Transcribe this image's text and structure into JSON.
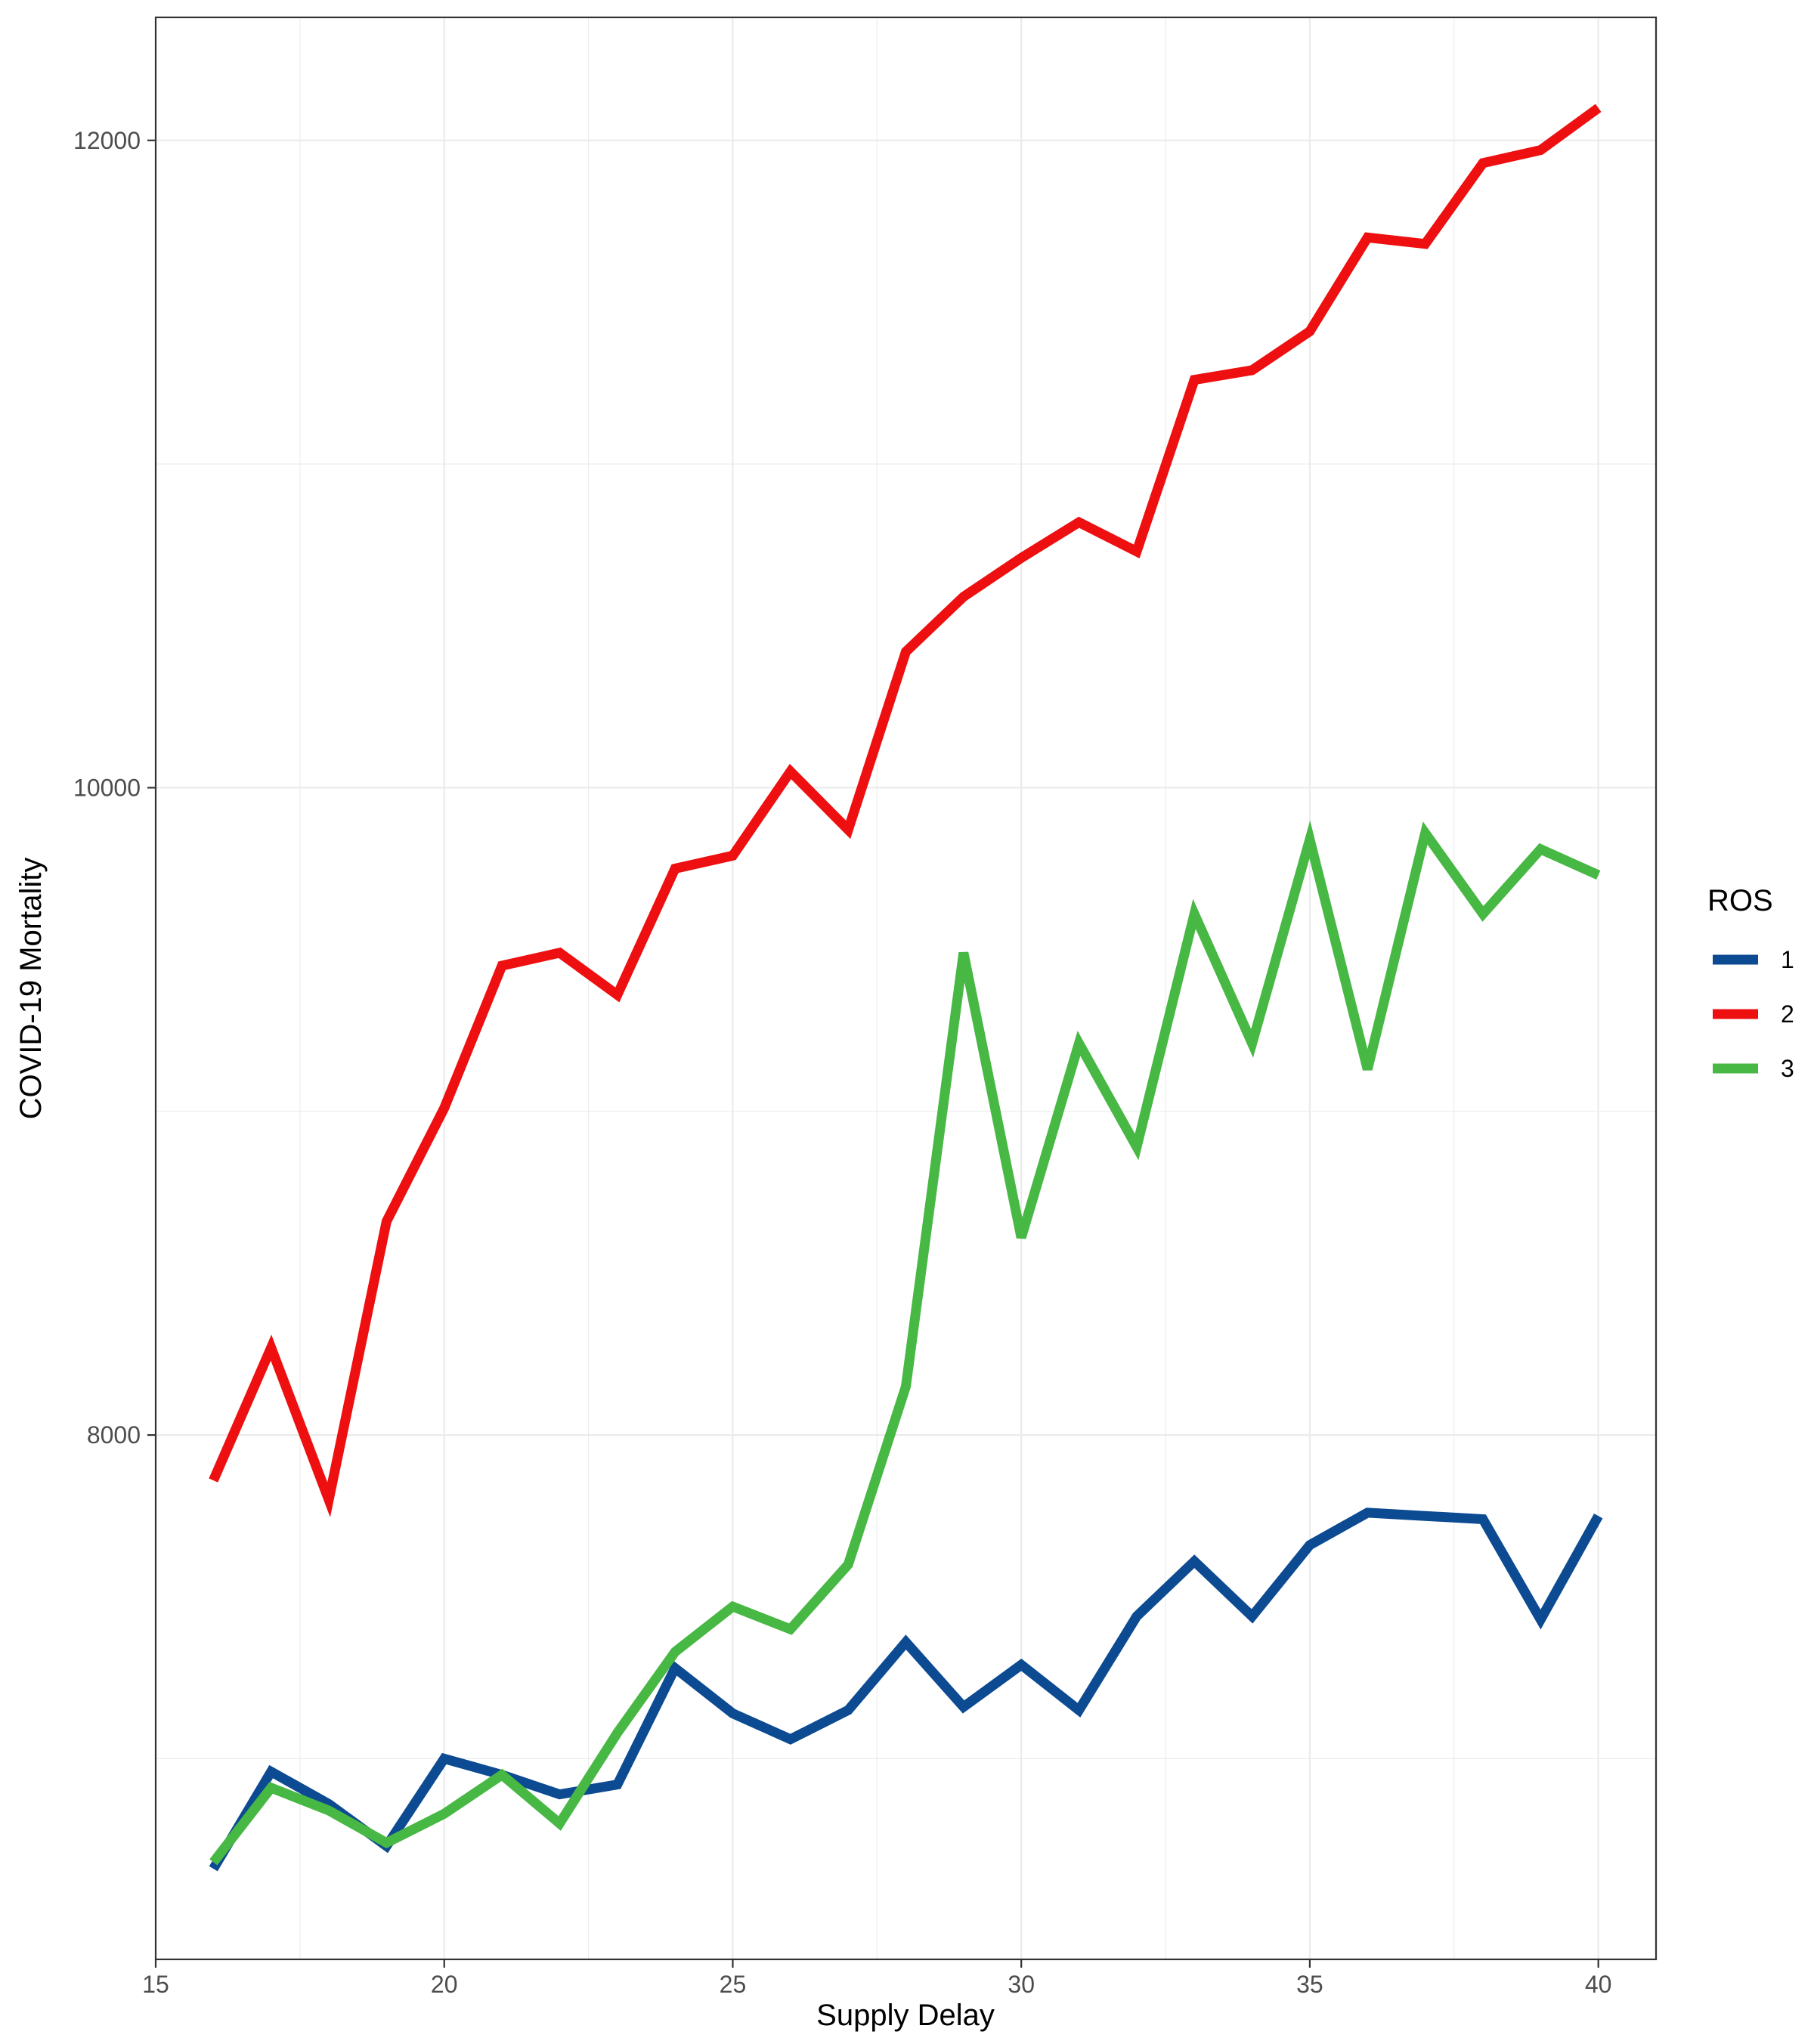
{
  "chart_data": {
    "type": "line",
    "title": "",
    "xlabel": "Supply Delay",
    "ylabel": "COVID-19 Mortality",
    "x": [
      16,
      17,
      18,
      19,
      20,
      21,
      22,
      23,
      24,
      25,
      26,
      27,
      28,
      29,
      30,
      31,
      32,
      33,
      34,
      35,
      36,
      37,
      38,
      39,
      40
    ],
    "xlim": [
      15,
      41
    ],
    "ylim": [
      6380,
      12380
    ],
    "x_ticks": [
      15,
      20,
      25,
      30,
      35,
      40
    ],
    "y_ticks": [
      8000,
      10000,
      12000
    ],
    "grid": true,
    "legend": {
      "title": "ROS",
      "position": "right"
    },
    "series": [
      {
        "name": "1",
        "color": "#0c4a92",
        "values": [
          6660,
          6960,
          6860,
          6730,
          7000,
          6950,
          6890,
          6920,
          7280,
          7140,
          7060,
          7150,
          7360,
          7160,
          7290,
          7150,
          7440,
          7610,
          7440,
          7660,
          7760,
          7750,
          7740,
          7430,
          7750
        ]
      },
      {
        "name": "2",
        "color": "#ee0f10",
        "values": [
          7860,
          8270,
          7800,
          8660,
          9010,
          9450,
          9490,
          9360,
          9750,
          9790,
          10050,
          9870,
          10420,
          10590,
          10710,
          10820,
          10730,
          11260,
          11290,
          11410,
          11700,
          11680,
          11930,
          11970,
          12100
        ]
      },
      {
        "name": "3",
        "color": "#47b843",
        "values": [
          6680,
          6910,
          6840,
          6740,
          6830,
          6950,
          6800,
          7080,
          7330,
          7470,
          7400,
          7600,
          8150,
          9490,
          8610,
          9210,
          8890,
          9610,
          9210,
          9840,
          9130,
          9860,
          9610,
          9810,
          9730
        ]
      }
    ]
  }
}
